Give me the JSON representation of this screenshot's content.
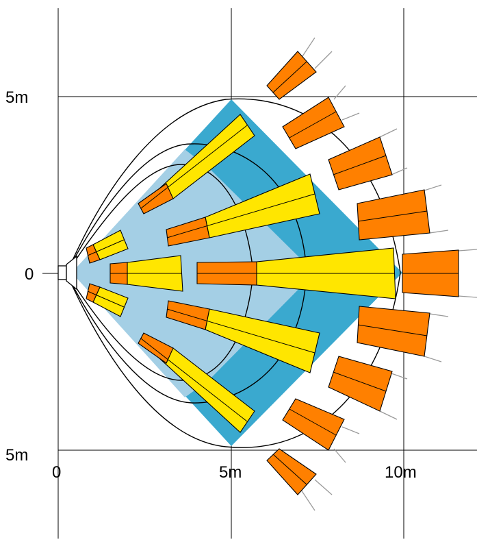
{
  "axes": {
    "x_ticks": [
      "0",
      "5m",
      "10m"
    ],
    "y_ticks": [
      "5m",
      "0",
      "5m"
    ]
  },
  "colors": {
    "light_blue_zone": "#a4cfe5",
    "dark_blue_zone": "#3aa9cf",
    "yellow_beam": "#ffe600",
    "orange_beam": "#ff8000",
    "outline": "#000000",
    "ray": "#9a9a9a"
  }
}
